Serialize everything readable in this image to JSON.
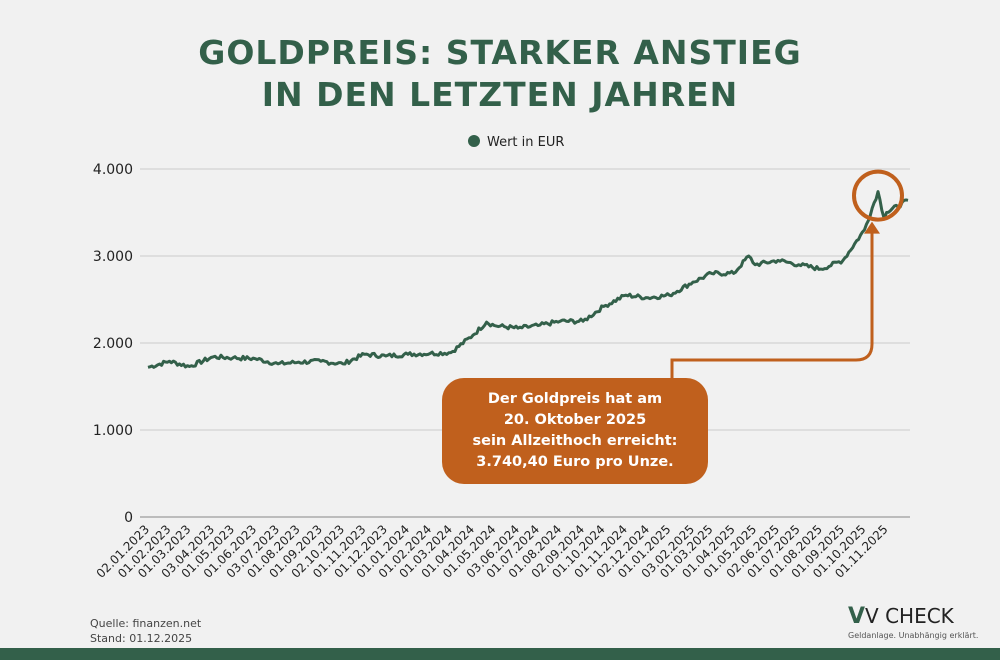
{
  "title_lines": [
    "GOLDPREIS: STARKER ANSTIEG",
    "IN DEN LETZTEN JAHREN"
  ],
  "footer": {
    "source": "Quelle: finanzen.net",
    "stand": "Stand: 01.12.2025"
  },
  "logo": {
    "name": "V CHECK",
    "tagline": "Geldanlage. Unabhängig erklärt."
  },
  "annotation": {
    "lines": [
      "Der Goldpreis hat am",
      "20. Oktober 2025",
      "sein Allzeithoch erreicht:",
      "3.740,40 Euro pro Unze."
    ],
    "color": "#c0601d"
  },
  "chart_data": {
    "type": "line",
    "legend_position": "top",
    "grid": true,
    "series": [
      {
        "name": "Wert in EUR",
        "color": "#33604a",
        "points": [
          [
            "2023-01-02",
            1720
          ],
          [
            "2023-02-01",
            1790
          ],
          [
            "2023-03-01",
            1730
          ],
          [
            "2023-04-03",
            1840
          ],
          [
            "2023-05-01",
            1830
          ],
          [
            "2023-06-01",
            1820
          ],
          [
            "2023-07-03",
            1760
          ],
          [
            "2023-08-01",
            1780
          ],
          [
            "2023-09-01",
            1790
          ],
          [
            "2023-10-02",
            1760
          ],
          [
            "2023-11-01",
            1870
          ],
          [
            "2023-12-01",
            1850
          ],
          [
            "2024-01-01",
            1870
          ],
          [
            "2024-02-01",
            1880
          ],
          [
            "2024-03-01",
            1890
          ],
          [
            "2024-04-01",
            2090
          ],
          [
            "2024-04-20",
            2240
          ],
          [
            "2024-05-01",
            2200
          ],
          [
            "2024-06-03",
            2170
          ],
          [
            "2024-07-01",
            2200
          ],
          [
            "2024-08-01",
            2250
          ],
          [
            "2024-09-02",
            2250
          ],
          [
            "2024-10-01",
            2420
          ],
          [
            "2024-11-01",
            2550
          ],
          [
            "2024-12-02",
            2520
          ],
          [
            "2025-01-01",
            2550
          ],
          [
            "2025-02-03",
            2700
          ],
          [
            "2025-03-01",
            2800
          ],
          [
            "2025-04-01",
            2800
          ],
          [
            "2025-04-22",
            3000
          ],
          [
            "2025-05-01",
            2900
          ],
          [
            "2025-06-02",
            2950
          ],
          [
            "2025-07-01",
            2900
          ],
          [
            "2025-08-01",
            2850
          ],
          [
            "2025-09-01",
            2950
          ],
          [
            "2025-10-01",
            3300
          ],
          [
            "2025-10-20",
            3740
          ],
          [
            "2025-10-28",
            3450
          ],
          [
            "2025-11-01",
            3500
          ],
          [
            "2025-12-01",
            3640
          ]
        ]
      }
    ],
    "x_tick_labels": [
      "02.01.2023",
      "01.02.2023",
      "01.03.2023",
      "03.04.2023",
      "01.05.2023",
      "01.06.2023",
      "03.07.2023",
      "01.08.2023",
      "01.09.2023",
      "02.10.2023",
      "01.11.2023",
      "01.12.2023",
      "01.01.2024",
      "01.02.2024",
      "01.03.2024",
      "01.04.2024",
      "01.05.2024",
      "03.06.2024",
      "01.07.2024",
      "01.08.2024",
      "02.09.2024",
      "01.10.2024",
      "01.11.2024",
      "02.12.2024",
      "01.01.2025",
      "03.02.2025",
      "01.03.2025",
      "01.04.2025",
      "01.05.2025",
      "02.06.2025",
      "01.07.2025",
      "01.08.2025",
      "01.09.2025",
      "01.10.2025",
      "01.11.2025"
    ],
    "y_ticks": [
      0,
      1000,
      2000,
      3000,
      4000
    ],
    "y_tick_labels": [
      "0",
      "1.000",
      "2.000",
      "3.000",
      "4.000"
    ],
    "ylim": [
      0,
      4000
    ],
    "xlim": [
      "2023-01-02",
      "2025-12-01"
    ],
    "highlight": {
      "date": "2025-10-20",
      "value": 3740.4
    }
  }
}
